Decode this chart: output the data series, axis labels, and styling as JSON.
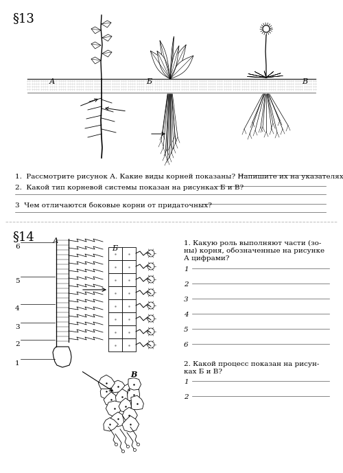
{
  "bg_color": "#ffffff",
  "section1": {
    "header": "§13",
    "q1": "1.  Рассмотрите рисунок А. Какие виды корней показаны? Напишите их на указателях.",
    "q2": "2.  Какой тип корневой системы показан на рисунках Б и В?",
    "q3": "3  Чем отличаются боковые корни от придаточных?"
  },
  "section2": {
    "header": "§14",
    "q1_title_line1": "1. Какую роль выполняют части (зо-",
    "q1_title_line2": "ны) корня, обозначенные на рисунке",
    "q1_title_line3": "А цифрами?",
    "q2_title_line1": "2. Какой процесс показан на рисун-",
    "q2_title_line2": "ках Б и В?",
    "fig_label_A": "А",
    "fig_label_B": "Б",
    "fig_label_V": "В"
  }
}
